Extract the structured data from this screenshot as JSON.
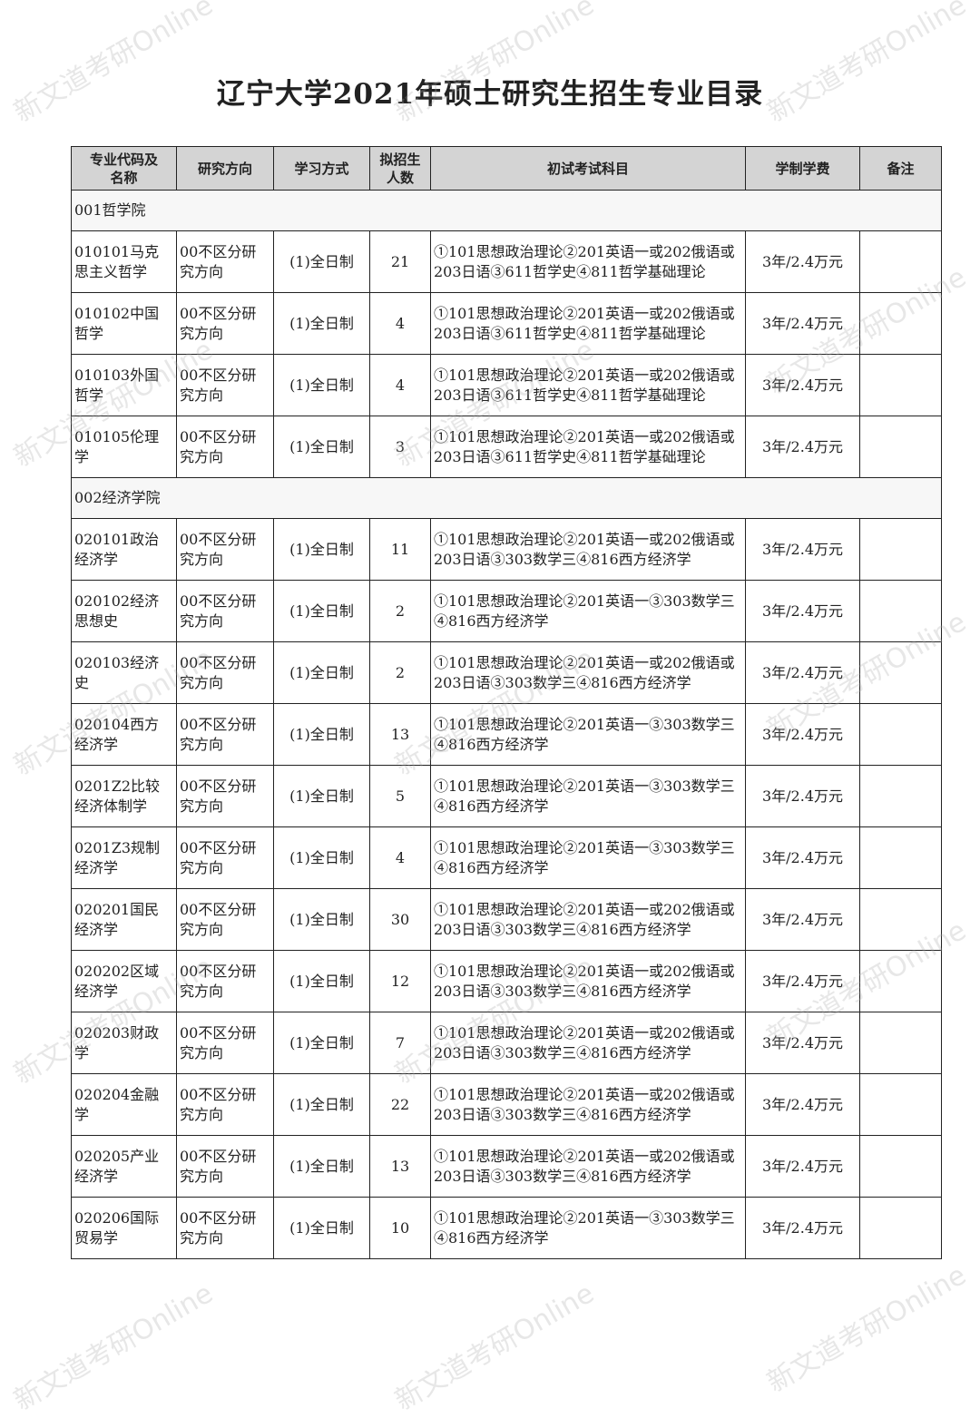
{
  "title": "辽宁大学2021年硕士研究生招生专业目录",
  "watermark": "新文道考研Online",
  "headers": [
    "专业代码及名称",
    "研究方向",
    "学习方式",
    "拟招生人数",
    "初试考试科目",
    "学制学费",
    "备注"
  ],
  "sections": [
    {
      "name": "001哲学院",
      "rows": [
        {
          "major": "010101马克思主义哲学",
          "direction": "00不区分研究方向",
          "mode": "(1)全日制",
          "quota": "21",
          "exams": "①101思想政治理论②201英语一或202俄语或203日语③611哲学史④811哲学基础理论",
          "fee": "3年/2.4万元",
          "note": ""
        },
        {
          "major": "010102中国哲学",
          "direction": "00不区分研究方向",
          "mode": "(1)全日制",
          "quota": "4",
          "exams": "①101思想政治理论②201英语一或202俄语或203日语③611哲学史④811哲学基础理论",
          "fee": "3年/2.4万元",
          "note": ""
        },
        {
          "major": "010103外国哲学",
          "direction": "00不区分研究方向",
          "mode": "(1)全日制",
          "quota": "4",
          "exams": "①101思想政治理论②201英语一或202俄语或203日语③611哲学史④811哲学基础理论",
          "fee": "3年/2.4万元",
          "note": ""
        },
        {
          "major": "010105伦理学",
          "direction": "00不区分研究方向",
          "mode": "(1)全日制",
          "quota": "3",
          "exams": "①101思想政治理论②201英语一或202俄语或203日语③611哲学史④811哲学基础理论",
          "fee": "3年/2.4万元",
          "note": ""
        }
      ]
    },
    {
      "name": "002经济学院",
      "rows": [
        {
          "major": "020101政治经济学",
          "direction": "00不区分研究方向",
          "mode": "(1)全日制",
          "quota": "11",
          "exams": "①101思想政治理论②201英语一或202俄语或203日语③303数学三④816西方经济学",
          "fee": "3年/2.4万元",
          "note": ""
        },
        {
          "major": "020102经济思想史",
          "direction": "00不区分研究方向",
          "mode": "(1)全日制",
          "quota": "2",
          "exams": "①101思想政治理论②201英语一③303数学三④816西方经济学",
          "fee": "3年/2.4万元",
          "note": ""
        },
        {
          "major": "020103经济史",
          "direction": "00不区分研究方向",
          "mode": "(1)全日制",
          "quota": "2",
          "exams": "①101思想政治理论②201英语一或202俄语或203日语③303数学三④816西方经济学",
          "fee": "3年/2.4万元",
          "note": ""
        },
        {
          "major": "020104西方经济学",
          "direction": "00不区分研究方向",
          "mode": "(1)全日制",
          "quota": "13",
          "exams": "①101思想政治理论②201英语一③303数学三④816西方经济学",
          "fee": "3年/2.4万元",
          "note": ""
        },
        {
          "major": "0201Z2比较经济体制学",
          "direction": "00不区分研究方向",
          "mode": "(1)全日制",
          "quota": "5",
          "exams": "①101思想政治理论②201英语一③303数学三④816西方经济学",
          "fee": "3年/2.4万元",
          "note": ""
        },
        {
          "major": "0201Z3规制经济学",
          "direction": "00不区分研究方向",
          "mode": "(1)全日制",
          "quota": "4",
          "exams": "①101思想政治理论②201英语一③303数学三④816西方经济学",
          "fee": "3年/2.4万元",
          "note": ""
        },
        {
          "major": "020201国民经济学",
          "direction": "00不区分研究方向",
          "mode": "(1)全日制",
          "quota": "30",
          "exams": "①101思想政治理论②201英语一或202俄语或203日语③303数学三④816西方经济学",
          "fee": "3年/2.4万元",
          "note": ""
        },
        {
          "major": "020202区域经济学",
          "direction": "00不区分研究方向",
          "mode": "(1)全日制",
          "quota": "12",
          "exams": "①101思想政治理论②201英语一或202俄语或203日语③303数学三④816西方经济学",
          "fee": "3年/2.4万元",
          "note": ""
        },
        {
          "major": "020203财政学",
          "direction": "00不区分研究方向",
          "mode": "(1)全日制",
          "quota": "7",
          "exams": "①101思想政治理论②201英语一或202俄语或203日语③303数学三④816西方经济学",
          "fee": "3年/2.4万元",
          "note": ""
        },
        {
          "major": "020204金融学",
          "direction": "00不区分研究方向",
          "mode": "(1)全日制",
          "quota": "22",
          "exams": "①101思想政治理论②201英语一或202俄语或203日语③303数学三④816西方经济学",
          "fee": "3年/2.4万元",
          "note": ""
        },
        {
          "major": "020205产业经济学",
          "direction": "00不区分研究方向",
          "mode": "(1)全日制",
          "quota": "13",
          "exams": "①101思想政治理论②201英语一或202俄语或203日语③303数学三④816西方经济学",
          "fee": "3年/2.4万元",
          "note": ""
        },
        {
          "major": "020206国际贸易学",
          "direction": "00不区分研究方向",
          "mode": "(1)全日制",
          "quota": "10",
          "exams": "①101思想政治理论②201英语一③303数学三④816西方经济学",
          "fee": "3年/2.4万元",
          "note": ""
        }
      ]
    }
  ]
}
